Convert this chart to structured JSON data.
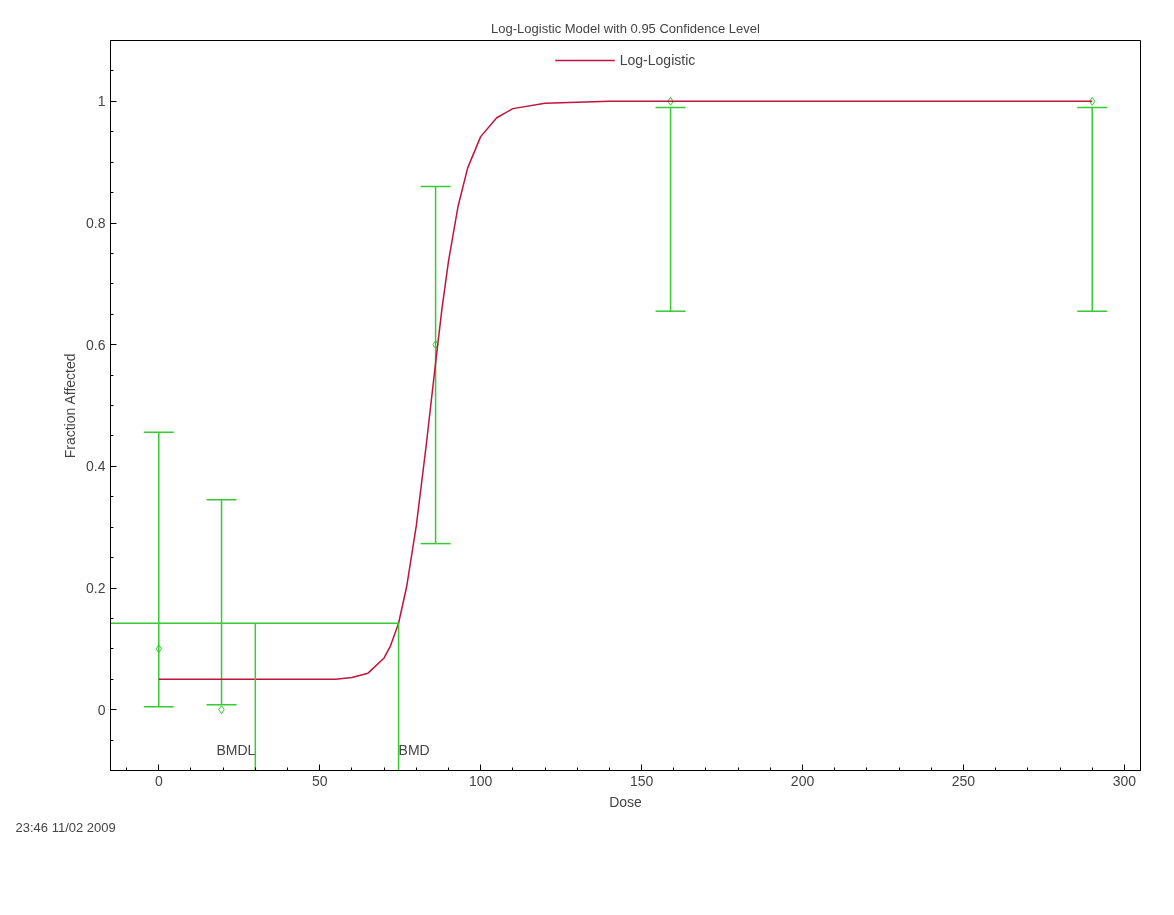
{
  "chart_data": {
    "type": "scatter",
    "title": "Log-Logistic Model with 0.95 Confidence Level",
    "xlabel": "Dose",
    "ylabel": "Fraction Affected",
    "xlim": [
      -15,
      305
    ],
    "xticks": [
      0,
      50,
      100,
      150,
      200,
      250,
      300
    ],
    "ylim": [
      -0.1,
      1.1
    ],
    "yticks": [
      0,
      {
        "value": 0.2,
        "label": "0.2"
      },
      {
        "value": 0.4,
        "label": "0.4"
      },
      {
        "value": 0.6,
        "label": "0.6"
      },
      {
        "value": 0.8,
        "label": "0.8"
      },
      1
    ],
    "grid": false,
    "legend": "top",
    "series": [
      {
        "marker": "diamond",
        "color": "#33cc33",
        "x": [
          0,
          19.5,
          86,
          159,
          290
        ],
        "values": [
          0.1,
          0,
          0.6,
          1,
          1
        ],
        "errors": [
          [
            0.005,
            0.456
          ],
          [
            0.008,
            0.345
          ],
          [
            0.273,
            0.86
          ],
          [
            0.655,
            0.99
          ],
          [
            0.655,
            0.99
          ]
        ]
      },
      {
        "type": "line",
        "marker": "none",
        "name": "Log-Logistic",
        "color": "#c0143c",
        "x": [
          0,
          20,
          40,
          55,
          60,
          65,
          70,
          72,
          74.5,
          77,
          80,
          83,
          86,
          88,
          90,
          93,
          96,
          100,
          105,
          110,
          120,
          140,
          200,
          290
        ],
        "values": [
          0.05,
          0.05,
          0.05,
          0.05,
          0.053,
          0.06,
          0.085,
          0.105,
          0.142,
          0.202,
          0.302,
          0.431,
          0.57,
          0.66,
          0.737,
          0.828,
          0.891,
          0.942,
          0.973,
          0.988,
          0.997,
          1,
          1,
          1
        ]
      }
    ],
    "ref_lines": [
      {
        "axis": "y",
        "value": 0.142,
        "color": "#33cc33"
      },
      {
        "axis": "x",
        "value": 30,
        "label": "BMDL",
        "color": "#33cc33"
      },
      {
        "axis": "x",
        "value": 74.5,
        "label": "BMD",
        "color": "#33cc33"
      }
    ],
    "annotations": [
      "23:46 11/02 2009"
    ]
  }
}
